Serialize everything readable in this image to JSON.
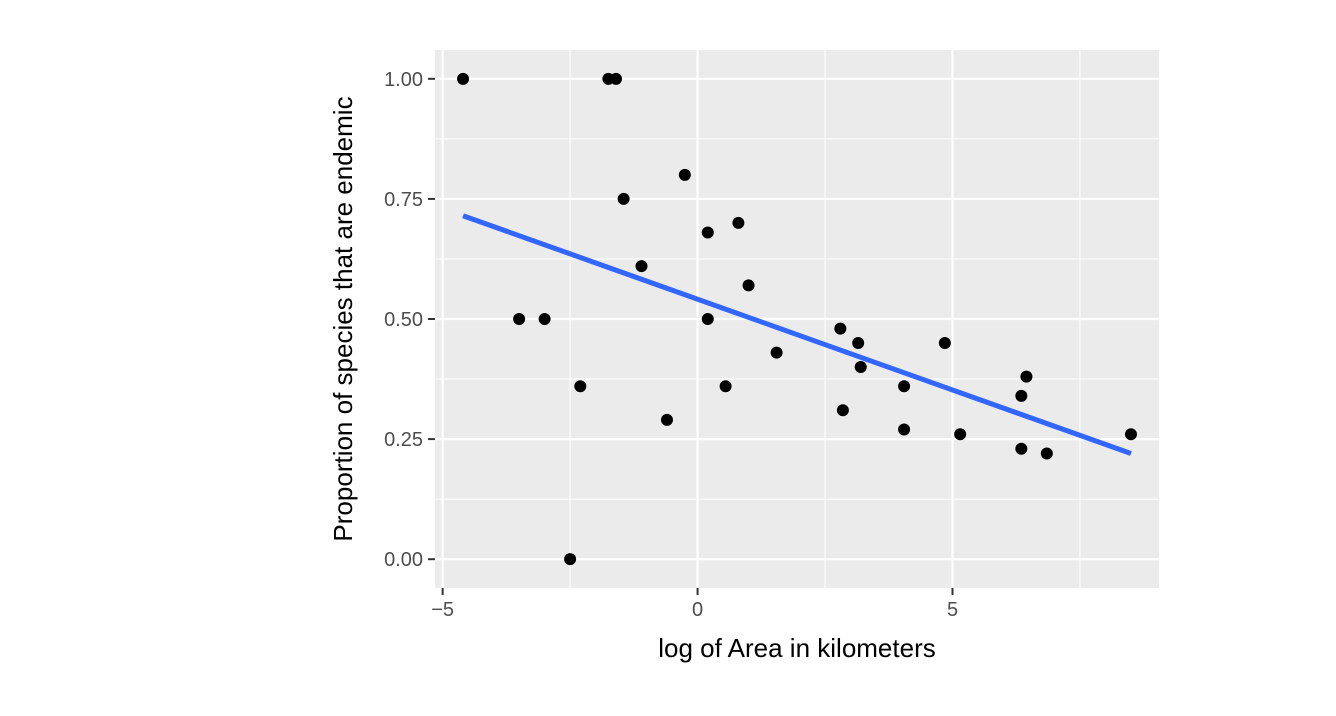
{
  "chart_data": {
    "type": "scatter",
    "xlabel": "log of Area in kilometers",
    "ylabel": "Proportion of species that are endemic",
    "xlim": [
      -5.15,
      9.05
    ],
    "ylim": [
      -0.06,
      1.06
    ],
    "x_ticks": [
      -5,
      0,
      5
    ],
    "x_tick_labels": [
      "−5",
      "0",
      "5"
    ],
    "y_ticks": [
      0.0,
      0.25,
      0.5,
      0.75,
      1.0
    ],
    "y_tick_labels": [
      "0.00",
      "0.25",
      "0.50",
      "0.75",
      "1.00"
    ],
    "grid": true,
    "points": [
      {
        "x": -4.6,
        "y": 1.0
      },
      {
        "x": -1.75,
        "y": 1.0
      },
      {
        "x": -1.6,
        "y": 1.0
      },
      {
        "x": -0.25,
        "y": 0.8
      },
      {
        "x": -1.45,
        "y": 0.75
      },
      {
        "x": 0.8,
        "y": 0.7
      },
      {
        "x": 0.2,
        "y": 0.68
      },
      {
        "x": -1.1,
        "y": 0.61
      },
      {
        "x": 1.0,
        "y": 0.57
      },
      {
        "x": -3.5,
        "y": 0.5
      },
      {
        "x": -3.0,
        "y": 0.5
      },
      {
        "x": 0.2,
        "y": 0.5
      },
      {
        "x": 2.8,
        "y": 0.48
      },
      {
        "x": 3.15,
        "y": 0.45
      },
      {
        "x": 4.85,
        "y": 0.45
      },
      {
        "x": 1.55,
        "y": 0.43
      },
      {
        "x": 3.2,
        "y": 0.4
      },
      {
        "x": 6.45,
        "y": 0.38
      },
      {
        "x": 0.55,
        "y": 0.36
      },
      {
        "x": -2.3,
        "y": 0.36
      },
      {
        "x": 4.05,
        "y": 0.36
      },
      {
        "x": 6.35,
        "y": 0.34
      },
      {
        "x": 2.85,
        "y": 0.31
      },
      {
        "x": -0.6,
        "y": 0.29
      },
      {
        "x": 4.05,
        "y": 0.27
      },
      {
        "x": 5.15,
        "y": 0.26
      },
      {
        "x": 8.5,
        "y": 0.26
      },
      {
        "x": 6.35,
        "y": 0.23
      },
      {
        "x": 6.85,
        "y": 0.22
      },
      {
        "x": -2.5,
        "y": 0.0
      }
    ],
    "fit_line": {
      "x": [
        -4.6,
        8.5
      ],
      "y": [
        0.715,
        0.22
      ]
    },
    "colors": {
      "points": "#000000",
      "fit_line": "#3366ff",
      "panel": "#ebebeb",
      "grid": "#ffffff"
    }
  }
}
